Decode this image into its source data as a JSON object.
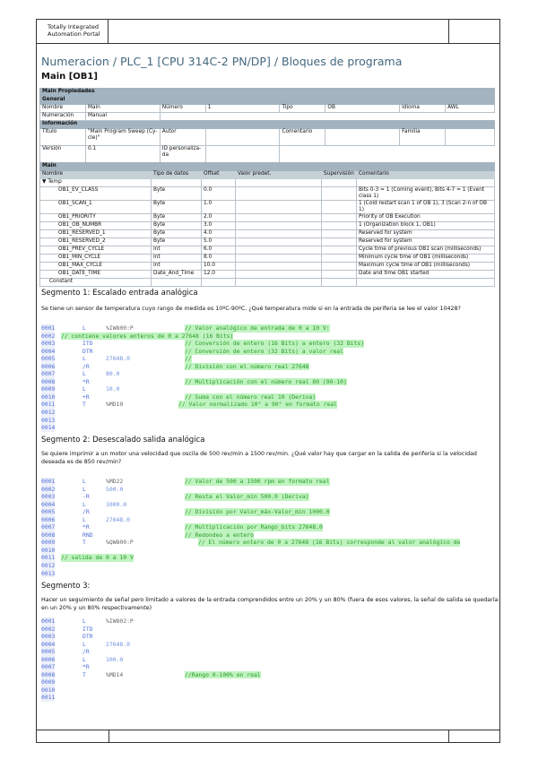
{
  "header": {
    "product": "Totally Integrated Automation Portal"
  },
  "title": "Numeracion / PLC_1 [CPU 314C-2 PN/DP] / Bloques de programa",
  "block": "Main [OB1]",
  "properties": {
    "section": "Main Propiedades",
    "general": "General",
    "nombre_label": "Nombre",
    "nombre": "Main",
    "numero_label": "Número",
    "numero": "1",
    "tipo_label": "Tipo",
    "tipo": "OB",
    "idioma_label": "Idioma",
    "idioma": "AWL",
    "numeracion_label": "Numeración",
    "numeracion": "Manual",
    "informacion": "Información",
    "titulo_label": "Título",
    "titulo": "\"Main Program Sweep (Cy-cle)\"",
    "autor_label": "Autor",
    "comentario_label": "Comentario",
    "familia_label": "Familia",
    "version_label": "Versión",
    "version": "0.1",
    "id_label": "ID personaliza-da"
  },
  "interface": {
    "section": "Main",
    "columns": [
      "Nombre",
      "Tipo de datos",
      "Offset",
      "Valor predet.",
      "Supervisión",
      "Comentario"
    ],
    "temp": "Temp",
    "rows": [
      [
        "OB1_EV_CLASS",
        "Byte",
        "0.0",
        "Bits 0-3 = 1 (Coming event), Bits 4-7 = 1 (Event class 1)"
      ],
      [
        "OB1_SCAN_1",
        "Byte",
        "1.0",
        "1 (Cold restart scan 1 of OB 1), 3 (Scan 2-n of OB 1)"
      ],
      [
        "OB1_PRIORITY",
        "Byte",
        "2.0",
        "Priority of OB Execution"
      ],
      [
        "OB1_OB_NUMBR",
        "Byte",
        "3.0",
        "1 (Organization block 1, OB1)"
      ],
      [
        "OB1_RESERVED_1",
        "Byte",
        "4.0",
        "Reserved for system"
      ],
      [
        "OB1_RESERVED_2",
        "Byte",
        "5.0",
        "Reserved for system"
      ],
      [
        "OB1_PREV_CYCLE",
        "Int",
        "6.0",
        "Cycle time of previous OB1 scan (milliseconds)"
      ],
      [
        "OB1_MIN_CYCLE",
        "Int",
        "8.0",
        "Minimum cycle time of OB1 (milliseconds)"
      ],
      [
        "OB1_MAX_CYCLE",
        "Int",
        "10.0",
        "Maximum cycle time of OB1 (milliseconds)"
      ],
      [
        "OB1_DATE_TIME",
        "Date_And_Time",
        "12.0",
        "Date and time OB1 started"
      ]
    ],
    "constant": "Constant"
  },
  "segments": [
    {
      "title": "Segmento 1: Escalado entrada analógica",
      "description": "Se tiene un sensor de temperatura cuyo rango de medida es 10ºC-90ºC. ¿Qué temperatura mide si en la entrada de periferia se lee el valor 10428?",
      "lines": [
        {
          "n": "0001",
          "op": "L",
          "arg": "%IW800:P",
          "cm": "// Valor analógico de entrada de 0 a 10 V:"
        },
        {
          "n": "0002",
          "cm": "// contiene valores enteros de 0 a 27648 (16 Bits)",
          "full": true
        },
        {
          "n": "0003",
          "op": "ITD",
          "cm": "// Conversión de entero (16 Bits) a entero (32 Bits)"
        },
        {
          "n": "0004",
          "op": "DTR",
          "cm": "// Conversión de entero (32 Bits) a valor real"
        },
        {
          "n": "0005",
          "op": "L",
          "arg": "27648.0",
          "num": true,
          "cm": "//"
        },
        {
          "n": "0006",
          "op": "/R",
          "cm": "// División con el número real 27648"
        },
        {
          "n": "0007",
          "op": "L",
          "arg": "80.0",
          "num": true
        },
        {
          "n": "0008",
          "op": "*R",
          "cm": "// Multiplicación con el número real 80 (90-10)"
        },
        {
          "n": "0009",
          "op": "L",
          "arg": "10.0",
          "num": true
        },
        {
          "n": "0010",
          "op": "+R",
          "cm": "// Suma con el número real 10 (Deriva)"
        },
        {
          "n": "0011",
          "op": "T",
          "arg": "%MD10",
          "cm": "// Valor normalizado 10° a 90° en formato real",
          "shift": true
        },
        {
          "n": "0012"
        },
        {
          "n": "0013"
        },
        {
          "n": "0014"
        }
      ]
    },
    {
      "title": "Segmento 2: Desescalado salida analógica",
      "description": "Se quiere imprimir a un motor una velocidad que oscila de 500 rev/min a 1500 rev/min. ¿Qué valor hay que cargar en la salida de periferia si la velocidad deseada es de 850 rev/min?",
      "lines": [
        {
          "n": "0001",
          "op": "L",
          "arg": "%MD22",
          "cm": "// Valor de 500 a 1500 rpm en formato real"
        },
        {
          "n": "0002",
          "op": "L",
          "arg": "500.0",
          "num": true
        },
        {
          "n": "0003",
          "op": "-R",
          "cm": "// Resta el Valor_min 500.0 (Deriva)"
        },
        {
          "n": "0004",
          "op": "L",
          "arg": "1000.0",
          "num": true
        },
        {
          "n": "0005",
          "op": "/R",
          "cm": "// División por Valor_máx-Valor_min 1000.0"
        },
        {
          "n": "0006",
          "op": "L",
          "arg": "27648.0",
          "num": true
        },
        {
          "n": "0007",
          "op": "*R",
          "cm": "// Multiplicación por Rango_bits 27648.0"
        },
        {
          "n": "0008",
          "op": "RND",
          "cm": "// Redondeo a entero"
        },
        {
          "n": "0009",
          "op": "T",
          "arg": "%QW800:P",
          "cm": "// El número entero de 0 a 27648 (16 Bits) corresponde al valor analógico de",
          "shift": true
        },
        {
          "n": "0010"
        },
        {
          "n": "0011",
          "cm": "// salida de 0 a 10 V",
          "full": true
        },
        {
          "n": "0012"
        },
        {
          "n": "0013"
        }
      ]
    },
    {
      "title": "Segmento 3:",
      "description": "Hacer un seguimiento de señal pero limitado a valores de la entrada comprendidos entre un 20% y un 80% (fuera de esos valores, la señal de salida se quedaría en un 20% y un 80% respectivamente)",
      "lines": [
        {
          "n": "0001",
          "op": "L",
          "arg": "%IW802:P"
        },
        {
          "n": "0002",
          "op": "ITD"
        },
        {
          "n": "0003",
          "op": "DTR"
        },
        {
          "n": "0004",
          "op": "L",
          "arg": "27648.0",
          "num": true
        },
        {
          "n": "0005",
          "op": "/R"
        },
        {
          "n": "0006",
          "op": "L",
          "arg": "100.0",
          "num": true
        },
        {
          "n": "0007",
          "op": "*R"
        },
        {
          "n": "0008",
          "op": "T",
          "arg": "%MD14",
          "cm": "//Rango 0-100% en real"
        },
        {
          "n": "0009"
        },
        {
          "n": "0010"
        },
        {
          "n": "0011"
        }
      ]
    }
  ]
}
